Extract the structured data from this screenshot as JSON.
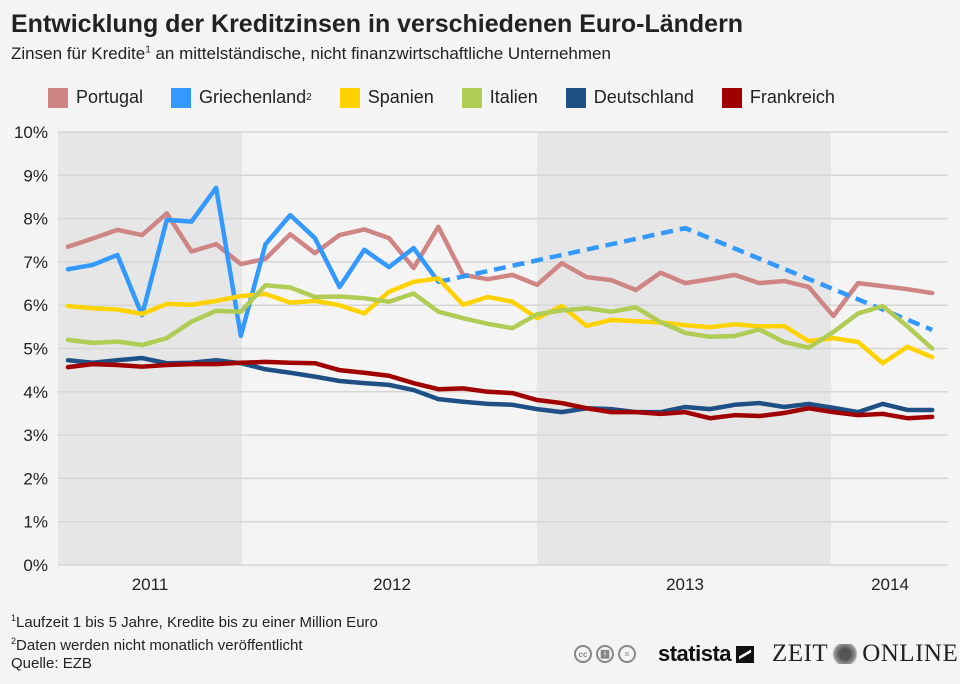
{
  "header": {
    "title": "Entwicklung der Kreditzinsen in verschiedenen Euro-Ländern",
    "subtitle_pre": "Zinsen für Kredite",
    "subtitle_sup": "1",
    "subtitle_post": " an mittelständische, nicht finanzwirtschaftliche Unternehmen"
  },
  "footer": {
    "note1_sup": "1",
    "note1": "Laufzeit 1 bis 5 Jahre, Kredite bis zu einer Million Euro",
    "note2_sup": "2",
    "note2": "Daten werden nicht monatlich veröffentlicht",
    "source": "Quelle: EZB",
    "license_icons": [
      "cc-icon",
      "attribution-icon",
      "no-derivatives-icon"
    ],
    "logo_statista": "statista",
    "logo_zeit_left": "ZEIT",
    "logo_zeit_right": "ONLINE"
  },
  "chart_data": {
    "type": "line",
    "title": "Entwicklung der Kreditzinsen in verschiedenen Euro-Ländern",
    "ylabel": "",
    "xlabel": "",
    "ylim": [
      0,
      10
    ],
    "y_ticks": [
      "0%",
      "1%",
      "2%",
      "3%",
      "4%",
      "5%",
      "6%",
      "7%",
      "8%",
      "9%",
      "10%"
    ],
    "x_tick_labels": [
      "2011",
      "2012",
      "2013",
      "2014"
    ],
    "grid": true,
    "legend_position": "top",
    "x": [
      "2011-06",
      "2011-07",
      "2011-08",
      "2011-09",
      "2011-10",
      "2011-11",
      "2011-12",
      "2012-01",
      "2012-02",
      "2012-03",
      "2012-04",
      "2012-05",
      "2012-06",
      "2012-07",
      "2012-08",
      "2012-09",
      "2012-10",
      "2012-11",
      "2012-12",
      "2013-01",
      "2013-02",
      "2013-03",
      "2013-04",
      "2013-05",
      "2013-06",
      "2013-07",
      "2013-08",
      "2013-09",
      "2013-10",
      "2013-11",
      "2013-12",
      "2014-01",
      "2014-02",
      "2014-03",
      "2014-04",
      "2014-05"
    ],
    "series": [
      {
        "name": "Portugal",
        "color": "#d08585",
        "values": [
          7.35,
          7.54,
          7.74,
          7.62,
          8.12,
          7.24,
          7.41,
          6.95,
          7.07,
          7.64,
          7.2,
          7.62,
          7.75,
          7.55,
          6.86,
          7.81,
          6.7,
          6.6,
          6.7,
          6.47,
          6.97,
          6.65,
          6.58,
          6.35,
          6.75,
          6.51,
          6.6,
          6.7,
          6.51,
          6.56,
          6.42,
          5.75,
          6.51,
          6.44,
          6.37,
          6.28
        ]
      },
      {
        "name": "Griechenland",
        "name_sup": "2",
        "color": "#3399ff",
        "values": [
          6.83,
          6.93,
          7.16,
          5.77,
          7.97,
          7.93,
          8.71,
          5.29,
          7.41,
          8.08,
          7.55,
          6.42,
          7.28,
          6.88,
          7.32,
          6.54,
          null,
          null,
          null,
          null,
          null,
          null,
          null,
          null,
          null,
          7.78,
          null,
          null,
          null,
          null,
          null,
          null,
          null,
          null,
          null,
          5.43
        ]
      },
      {
        "name": "Spanien",
        "color": "#ffd200",
        "values": [
          5.98,
          5.93,
          5.9,
          5.8,
          6.03,
          6.01,
          6.1,
          6.21,
          6.26,
          6.06,
          6.1,
          6.0,
          5.81,
          6.31,
          6.54,
          6.62,
          6.01,
          6.19,
          6.08,
          5.7,
          5.98,
          5.52,
          5.66,
          5.63,
          5.6,
          5.54,
          5.49,
          5.56,
          5.51,
          5.52,
          5.17,
          5.24,
          5.15,
          4.66,
          5.04,
          4.8
        ]
      },
      {
        "name": "Italien",
        "color": "#b0cc55",
        "values": [
          5.2,
          5.13,
          5.16,
          5.08,
          5.24,
          5.62,
          5.87,
          5.85,
          6.46,
          6.41,
          6.19,
          6.2,
          6.16,
          6.08,
          6.27,
          5.85,
          5.7,
          5.57,
          5.47,
          5.79,
          5.88,
          5.93,
          5.85,
          5.95,
          5.61,
          5.36,
          5.27,
          5.29,
          5.44,
          5.15,
          5.02,
          5.38,
          5.81,
          5.98,
          5.51,
          5.0
        ]
      },
      {
        "name": "Deutschland",
        "color": "#1e4f85",
        "values": [
          4.73,
          4.67,
          4.73,
          4.78,
          4.66,
          4.67,
          4.73,
          4.66,
          4.52,
          4.44,
          4.35,
          4.25,
          4.2,
          4.16,
          4.04,
          3.83,
          3.77,
          3.72,
          3.7,
          3.6,
          3.53,
          3.62,
          3.6,
          3.53,
          3.53,
          3.65,
          3.6,
          3.7,
          3.74,
          3.65,
          3.72,
          3.63,
          3.53,
          3.72,
          3.58,
          3.58
        ]
      },
      {
        "name": "Frankreich",
        "color": "#a00000",
        "values": [
          4.57,
          4.64,
          4.62,
          4.58,
          4.62,
          4.64,
          4.64,
          4.67,
          4.69,
          4.67,
          4.66,
          4.5,
          4.44,
          4.37,
          4.2,
          4.06,
          4.08,
          4.0,
          3.97,
          3.81,
          3.74,
          3.62,
          3.53,
          3.53,
          3.49,
          3.53,
          3.39,
          3.46,
          3.44,
          3.51,
          3.62,
          3.53,
          3.46,
          3.49,
          3.39,
          3.42
        ]
      }
    ]
  }
}
